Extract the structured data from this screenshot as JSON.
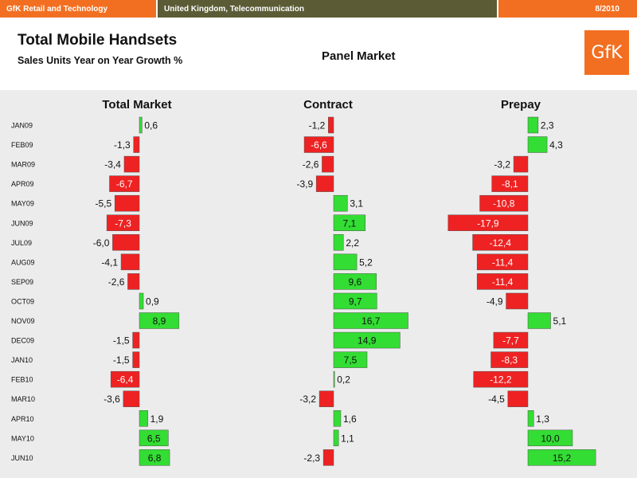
{
  "header": {
    "left": "GfK Retail and Technology",
    "middle": "United Kingdom, Telecommunication",
    "right": "8/2010"
  },
  "title": "Total Mobile Handsets",
  "subtitle": "Sales Units Year on Year Growth %",
  "panel_label": "Panel Market",
  "logo_text": "GfK",
  "colors": {
    "brand_orange": "#f26f21",
    "header_olive": "#5b5c36",
    "positive": "#33dd33",
    "negative": "#ee2222"
  },
  "chart_data": {
    "type": "bar",
    "orientation": "horizontal",
    "categories": [
      "JAN09",
      "FEB09",
      "MAR09",
      "APR09",
      "MAY09",
      "JUN09",
      "JUL09",
      "AUG09",
      "SEP09",
      "OCT09",
      "NOV09",
      "DEC09",
      "JAN10",
      "FEB10",
      "MAR10",
      "APR10",
      "MAY10",
      "JUN10"
    ],
    "series": [
      {
        "name": "Total Market",
        "values": [
          0.6,
          -1.3,
          -3.4,
          -6.7,
          -5.5,
          -7.3,
          -6.0,
          -4.1,
          -2.6,
          0.9,
          8.9,
          -1.5,
          -1.5,
          -6.4,
          -3.6,
          1.9,
          6.5,
          6.8
        ],
        "labels": [
          "0,6",
          "-1,3",
          "-3,4",
          "-6,7",
          "-5,5",
          "-7,3",
          "-6,0",
          "-4,1",
          "-2,6",
          "0,9",
          "8,9",
          "-1,5",
          "-1,5",
          "-6,4",
          "-3,6",
          "1,9",
          "6,5",
          "6,8"
        ]
      },
      {
        "name": "Contract",
        "values": [
          -1.2,
          -6.6,
          -2.6,
          -3.9,
          3.1,
          7.1,
          2.2,
          5.2,
          9.6,
          9.7,
          16.7,
          14.9,
          7.5,
          0.2,
          -3.2,
          1.6,
          1.1,
          -2.3
        ],
        "labels": [
          "-1,2",
          "-6,6",
          "-2,6",
          "-3,9",
          "3,1",
          "7,1",
          "2,2",
          "5,2",
          "9,6",
          "9,7",
          "16,7",
          "14,9",
          "7,5",
          "0,2",
          "-3,2",
          "1,6",
          "1,1",
          "-2,3"
        ]
      },
      {
        "name": "Prepay",
        "values": [
          2.3,
          4.3,
          -3.2,
          -8.1,
          -10.8,
          -17.9,
          -12.4,
          -11.4,
          -11.4,
          -4.9,
          5.1,
          -7.7,
          -8.3,
          -12.2,
          -4.5,
          1.3,
          10.0,
          15.2
        ],
        "labels": [
          "2,3",
          "4,3",
          "-3,2",
          "-8,1",
          "-10,8",
          "-17,9",
          "-12,4",
          "-11,4",
          "-11,4",
          "-4,9",
          "5,1",
          "-7,7",
          "-8,3",
          "-12,2",
          "-4,5",
          "1,3",
          "10,0",
          "15,2"
        ]
      }
    ],
    "grid": false,
    "legend": "none"
  }
}
